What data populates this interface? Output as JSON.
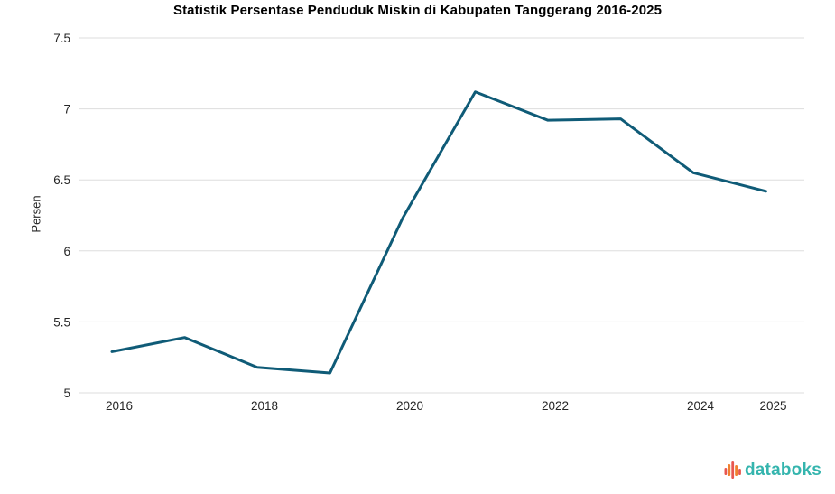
{
  "chart_data": {
    "type": "line",
    "title": "Statistik Persentase Penduduk Miskin di Kabupaten Tanggerang 2016-2025",
    "ylabel": "Persen",
    "x": [
      2016,
      2017,
      2018,
      2019,
      2020,
      2021,
      2022,
      2023,
      2024,
      2025
    ],
    "values": [
      5.29,
      5.39,
      5.18,
      5.14,
      6.23,
      7.12,
      6.92,
      6.93,
      6.55,
      6.42
    ],
    "series_name": "Persentase penduduk miskin",
    "ylim": [
      5,
      7.5
    ],
    "yticks": [
      5,
      5.5,
      6,
      6.5,
      7,
      7.5
    ],
    "ytick_labels": [
      "5",
      "5.5",
      "6",
      "6.5",
      "7",
      "7.5"
    ],
    "xticks": [
      2016,
      2018,
      2020,
      2022,
      2024,
      2025
    ],
    "xtick_labels": [
      "2016",
      "2018",
      "2020",
      "2022",
      "2024",
      "2025"
    ],
    "grid": true,
    "legend_position": "none",
    "line_color": "#0f5b77",
    "grid_color": "#dddddd",
    "tick_color": "#262626"
  },
  "branding": {
    "logo_text": "databoks",
    "logo_text_color": "#35b5ae",
    "logo_bar_colors": [
      "#e8574f",
      "#f0802f",
      "#e8574f",
      "#f0802f",
      "#e8574f"
    ]
  }
}
